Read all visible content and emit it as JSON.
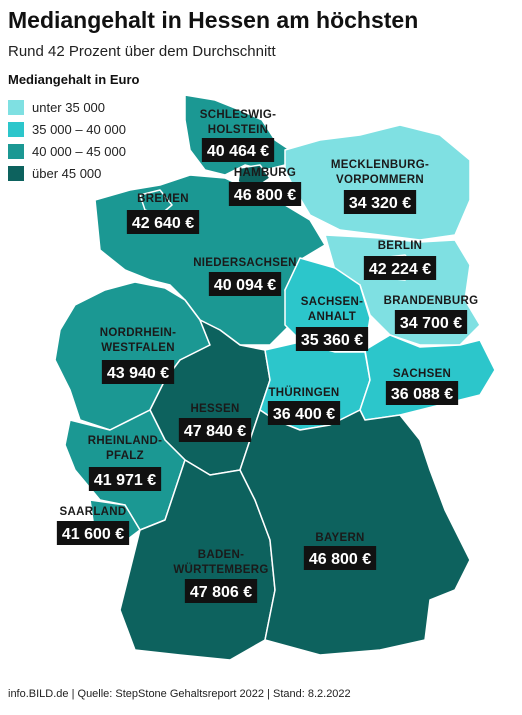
{
  "header": {
    "title": "Mediangehalt in Hessen am höchsten",
    "subtitle": "Rund 42 Prozent über dem Durchschnitt"
  },
  "legend": {
    "title": "Mediangehalt in Euro",
    "items": [
      {
        "label": "unter 35 000",
        "color": "#7fe0e2"
      },
      {
        "label": "35 000 – 40 000",
        "color": "#2cc6cb"
      },
      {
        "label": "40 000 – 45 000",
        "color": "#1b9893"
      },
      {
        "label": "über 45 000",
        "color": "#0d625e"
      }
    ]
  },
  "regions": [
    {
      "name": [
        "SCHLESWIG-",
        "HOLSTEIN"
      ],
      "value": "40 464 €",
      "color": "#1b9893"
    },
    {
      "name": [
        "HAMBURG"
      ],
      "value": "46 800 €",
      "color": "#0d625e"
    },
    {
      "name": [
        "MECKLENBURG-",
        "VORPOMMERN"
      ],
      "value": "34 320 €",
      "color": "#7fe0e2"
    },
    {
      "name": [
        "BREMEN"
      ],
      "value": "42 640 €",
      "color": "#1b9893"
    },
    {
      "name": [
        "NIEDERSACHSEN"
      ],
      "value": "40 094 €",
      "color": "#1b9893"
    },
    {
      "name": [
        "BERLIN"
      ],
      "value": "42 224 €",
      "color": "#1b9893"
    },
    {
      "name": [
        "BRANDENBURG"
      ],
      "value": "34 700 €",
      "color": "#7fe0e2"
    },
    {
      "name": [
        "SACHSEN-",
        "ANHALT"
      ],
      "value": "35 360 €",
      "color": "#2cc6cb"
    },
    {
      "name": [
        "NORDRHEIN-",
        "WESTFALEN"
      ],
      "value": "43 940 €",
      "color": "#1b9893"
    },
    {
      "name": [
        "HESSEN"
      ],
      "value": "47 840 €",
      "color": "#0d625e"
    },
    {
      "name": [
        "THÜRINGEN"
      ],
      "value": "36 400 €",
      "color": "#2cc6cb"
    },
    {
      "name": [
        "SACHSEN"
      ],
      "value": "36 088 €",
      "color": "#2cc6cb"
    },
    {
      "name": [
        "RHEINLAND-",
        "PFALZ"
      ],
      "value": "41 971 €",
      "color": "#1b9893"
    },
    {
      "name": [
        "SAARLAND"
      ],
      "value": "41 600 €",
      "color": "#1b9893"
    },
    {
      "name": [
        "BADEN-",
        "WÜRTTEMBERG"
      ],
      "value": "47 806 €",
      "color": "#0d625e"
    },
    {
      "name": [
        "BAYERN"
      ],
      "value": "46 800 €",
      "color": "#0d625e"
    }
  ],
  "footer": "info.BILD.de | Quelle: StepStone Gehaltsreport 2022 | Stand: 8.2.2022"
}
